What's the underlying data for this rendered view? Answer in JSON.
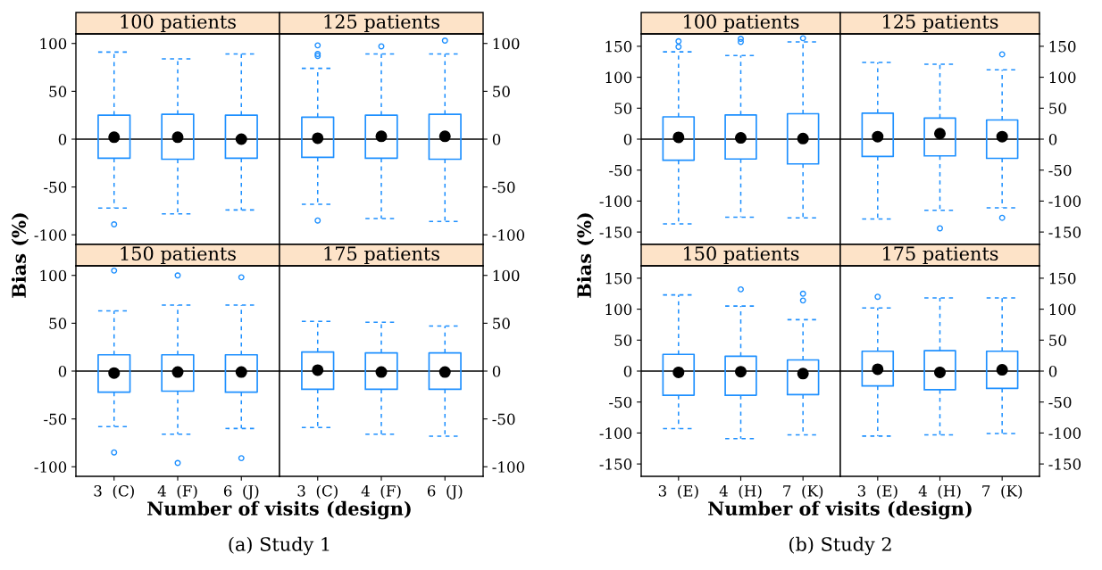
{
  "chart_data": [
    {
      "type": "box",
      "title": "100 patients",
      "ylabel": "Bias (%)",
      "categories": [
        null,
        null,
        null
      ],
      "ylim": [
        -110,
        110
      ],
      "yticks": [
        -100,
        -50,
        0,
        50,
        100
      ],
      "tick_labels": "y",
      "grid": false,
      "ref_lines": [
        {
          "axis": "y",
          "value": 0,
          "color": "#000000"
        }
      ],
      "series": [
        {
          "color": "#1e90ff",
          "boxes": [
            {
              "low": -72,
              "q1": -20,
              "median": 2,
              "q3": 25,
              "high": 91,
              "outliers": [
                -89
              ]
            },
            {
              "low": -78,
              "q1": -21,
              "median": 2,
              "q3": 26,
              "high": 84
            },
            {
              "low": -74,
              "q1": -20,
              "median": 0,
              "q3": 25,
              "high": 89
            }
          ]
        }
      ]
    },
    {
      "type": "box",
      "title": "125 patients",
      "categories": [
        null,
        null,
        null
      ],
      "ylim": [
        -110,
        110
      ],
      "yticks": [
        -100,
        -50,
        0,
        50,
        100
      ],
      "tick_labels": "y",
      "grid": false,
      "ref_lines": [
        {
          "axis": "y",
          "value": 0,
          "color": "#000000"
        }
      ],
      "series": [
        {
          "color": "#1e90ff",
          "boxes": [
            {
              "low": -68,
              "q1": -19,
              "median": 1,
              "q3": 23,
              "high": 74,
              "outliers": [
                98,
                89,
                87,
                -85
              ]
            },
            {
              "low": -83,
              "q1": -20,
              "median": 3,
              "q3": 25,
              "high": 89,
              "outliers": [
                97
              ]
            },
            {
              "low": -86,
              "q1": -21,
              "median": 3,
              "q3": 26,
              "high": 89,
              "outliers": [
                103
              ]
            }
          ]
        }
      ]
    },
    {
      "type": "box",
      "title": "150 patients",
      "xlabel": "Number of visits (design)",
      "annotations": [
        "(a) Study 1"
      ],
      "categories": [
        "3  (C)",
        "4  (F)",
        "6  (J)"
      ],
      "ylim": [
        -110,
        110
      ],
      "yticks": [
        -100,
        -50,
        0,
        50,
        100
      ],
      "grid": false,
      "ref_lines": [
        {
          "axis": "y",
          "value": 0,
          "color": "#000000"
        }
      ],
      "series": [
        {
          "color": "#1e90ff",
          "boxes": [
            {
              "low": -58,
              "q1": -22,
              "median": -2,
              "q3": 17,
              "high": 63,
              "outliers": [
                105,
                -85
              ]
            },
            {
              "low": -66,
              "q1": -21,
              "median": -1,
              "q3": 17,
              "high": 69,
              "outliers": [
                100,
                -96
              ]
            },
            {
              "low": -60,
              "q1": -22,
              "median": -1,
              "q3": 17,
              "high": 69,
              "outliers": [
                98,
                -91
              ]
            }
          ]
        }
      ]
    },
    {
      "type": "box",
      "title": "175 patients",
      "categories": [
        "3  (C)",
        "4  (F)",
        "6  (J)"
      ],
      "ylim": [
        -110,
        110
      ],
      "yticks": [
        -100,
        -50,
        0,
        50,
        100
      ],
      "grid": false,
      "ref_lines": [
        {
          "axis": "y",
          "value": 0,
          "color": "#000000"
        }
      ],
      "series": [
        {
          "color": "#1e90ff",
          "boxes": [
            {
              "low": -59,
              "q1": -19,
              "median": 1,
              "q3": 20,
              "high": 52
            },
            {
              "low": -66,
              "q1": -19,
              "median": -1,
              "q3": 19,
              "high": 51
            },
            {
              "low": -68,
              "q1": -19,
              "median": -1,
              "q3": 19,
              "high": 47
            }
          ]
        }
      ]
    },
    {
      "type": "box",
      "title": "100 patients",
      "ylabel": "Bias (%)",
      "categories": [
        null,
        null,
        null
      ],
      "ylim": [
        -170,
        170
      ],
      "yticks": [
        -150,
        -100,
        -50,
        0,
        50,
        100,
        150
      ],
      "tick_labels": "y",
      "grid": false,
      "ref_lines": [
        {
          "axis": "y",
          "value": 0,
          "color": "#000000"
        }
      ],
      "series": [
        {
          "color": "#1e90ff",
          "boxes": [
            {
              "low": -137,
              "q1": -34,
              "median": 3,
              "q3": 36,
              "high": 141,
              "outliers": [
                158,
                149
              ]
            },
            {
              "low": -126,
              "q1": -32,
              "median": 2,
              "q3": 39,
              "high": 135,
              "outliers": [
                162,
                157
              ]
            },
            {
              "low": -127,
              "q1": -40,
              "median": 1,
              "q3": 41,
              "high": 157,
              "outliers": [
                163
              ]
            }
          ]
        }
      ]
    },
    {
      "type": "box",
      "title": "125 patients",
      "categories": [
        null,
        null,
        null
      ],
      "ylim": [
        -170,
        170
      ],
      "yticks": [
        -150,
        -100,
        -50,
        0,
        50,
        100,
        150
      ],
      "tick_labels": "y",
      "grid": false,
      "ref_lines": [
        {
          "axis": "y",
          "value": 0,
          "color": "#000000"
        }
      ],
      "series": [
        {
          "color": "#1e90ff",
          "boxes": [
            {
              "low": -129,
              "q1": -28,
              "median": 4,
              "q3": 42,
              "high": 124
            },
            {
              "low": -115,
              "q1": -27,
              "median": 9,
              "q3": 34,
              "high": 121,
              "outliers": [
                -144
              ]
            },
            {
              "low": -111,
              "q1": -31,
              "median": 4,
              "q3": 31,
              "high": 112,
              "outliers": [
                137,
                -127
              ]
            }
          ]
        }
      ]
    },
    {
      "type": "box",
      "title": "150 patients",
      "xlabel": "Number of visits (design)",
      "annotations": [
        "(b) Study 2"
      ],
      "categories": [
        "3  (E)",
        "4  (H)",
        "7  (K)"
      ],
      "ylim": [
        -170,
        170
      ],
      "yticks": [
        -150,
        -100,
        -50,
        0,
        50,
        100,
        150
      ],
      "grid": false,
      "ref_lines": [
        {
          "axis": "y",
          "value": 0,
          "color": "#000000"
        }
      ],
      "series": [
        {
          "color": "#1e90ff",
          "boxes": [
            {
              "low": -93,
              "q1": -39,
              "median": -2,
              "q3": 27,
              "high": 123
            },
            {
              "low": -109,
              "q1": -39,
              "median": -1,
              "q3": 24,
              "high": 105,
              "outliers": [
                132
              ]
            },
            {
              "low": -103,
              "q1": -38,
              "median": -4,
              "q3": 18,
              "high": 83,
              "outliers": [
                125,
                114
              ]
            }
          ]
        }
      ]
    },
    {
      "type": "box",
      "title": "175 patients",
      "categories": [
        "3  (E)",
        "4  (H)",
        "7  (K)"
      ],
      "ylim": [
        -170,
        170
      ],
      "yticks": [
        -150,
        -100,
        -50,
        0,
        50,
        100,
        150
      ],
      "grid": false,
      "ref_lines": [
        {
          "axis": "y",
          "value": 0,
          "color": "#000000"
        }
      ],
      "series": [
        {
          "color": "#1e90ff",
          "boxes": [
            {
              "low": -105,
              "q1": -24,
              "median": 3,
              "q3": 32,
              "high": 102,
              "outliers": [
                120
              ]
            },
            {
              "low": -103,
              "q1": -30,
              "median": -2,
              "q3": 33,
              "high": 118
            },
            {
              "low": -101,
              "q1": -28,
              "median": 2,
              "q3": 32,
              "high": 118
            }
          ]
        }
      ]
    }
  ]
}
